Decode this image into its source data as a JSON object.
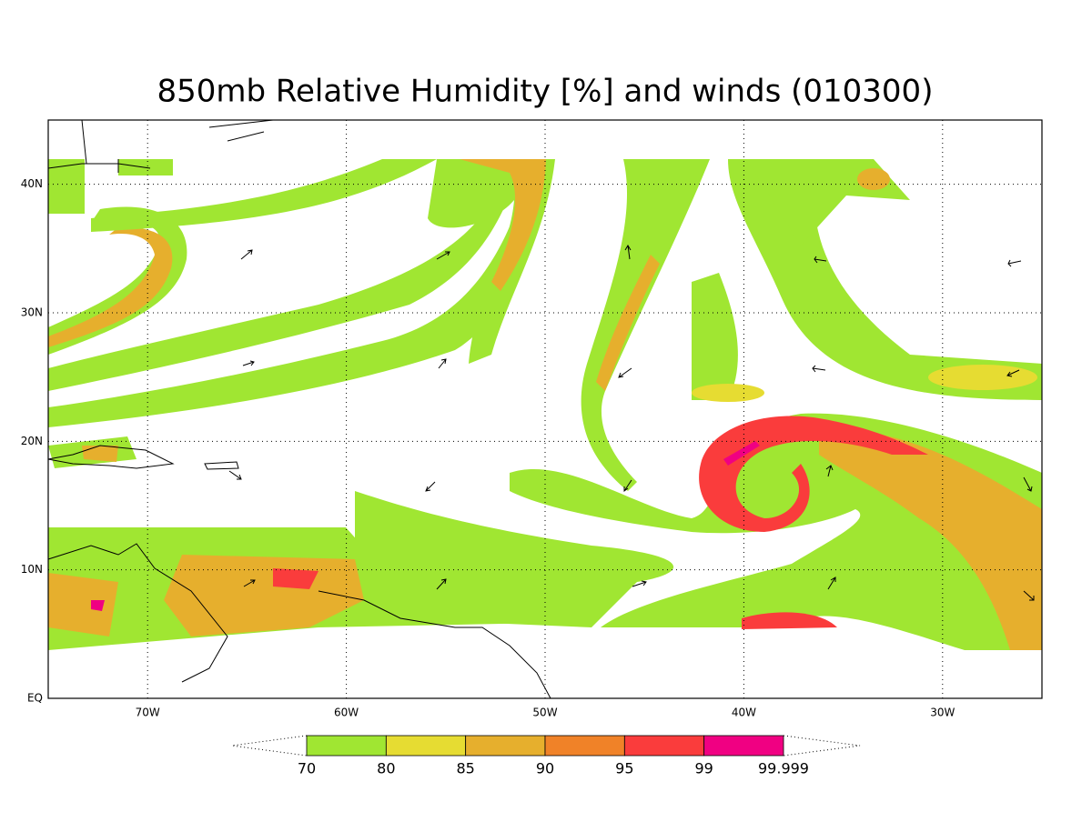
{
  "title": "850mb Relative Humidity [%] and winds (010300)",
  "map": {
    "xlim": [
      -75,
      -25
    ],
    "ylim": [
      0,
      45
    ],
    "xticks": [
      {
        "value": -70,
        "label": "70W"
      },
      {
        "value": -60,
        "label": "60W"
      },
      {
        "value": -50,
        "label": "50W"
      },
      {
        "value": -40,
        "label": "40W"
      },
      {
        "value": -30,
        "label": "30W"
      }
    ],
    "yticks": [
      {
        "value": 0,
        "label": "EQ"
      },
      {
        "value": 10,
        "label": "10N"
      },
      {
        "value": 20,
        "label": "20N"
      },
      {
        "value": 30,
        "label": "30N"
      },
      {
        "value": 40,
        "label": "40N"
      }
    ],
    "grid": true
  },
  "colorbar": {
    "levels": [
      70,
      80,
      85,
      90,
      95,
      99,
      99.999
    ],
    "colors": [
      "#a0e632",
      "#e6dc32",
      "#e6af2d",
      "#f08228",
      "#fa3c3c",
      "#f00082"
    ]
  }
}
